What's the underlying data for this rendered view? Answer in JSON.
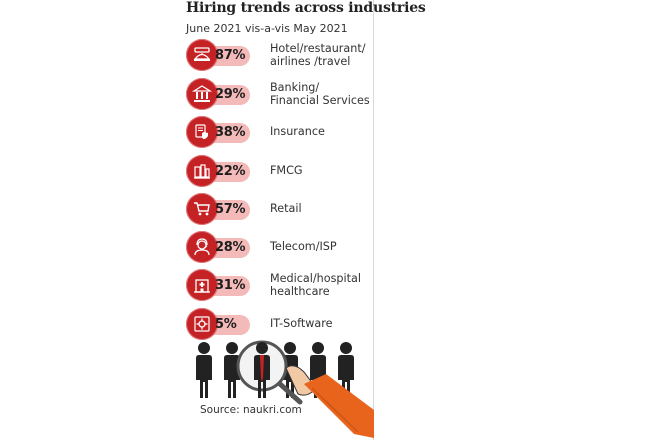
{
  "header": {
    "title": "Hiring trends across industries",
    "subtitle": "June 2021 vis-a-vis May 2021"
  },
  "chart_data": {
    "type": "table",
    "title": "Hiring trends across industries",
    "subtitle": "June 2021 vis-a-vis May 2021",
    "categories": [
      "Hotel/restaurant/ airlines /travel",
      "Banking/ Financial Services",
      "Insurance",
      "FMCG",
      "Retail",
      "Telecom/ISP",
      "Medical/hospital healthcare",
      "IT-Software"
    ],
    "values": [
      87,
      29,
      38,
      22,
      57,
      28,
      31,
      5
    ],
    "unit": "%"
  },
  "rows": [
    {
      "pct": "87%",
      "line1": "Hotel/restaurant/",
      "line2": "airlines /travel",
      "icon": "hotel-bell-icon"
    },
    {
      "pct": "29%",
      "line1": "Banking/",
      "line2": "Financial Services",
      "icon": "bank-icon"
    },
    {
      "pct": "38%",
      "line1": "Insurance",
      "line2": "",
      "icon": "insurance-shield-icon"
    },
    {
      "pct": "22%",
      "line1": "FMCG",
      "line2": "",
      "icon": "fmcg-products-icon"
    },
    {
      "pct": "57%",
      "line1": "Retail",
      "line2": "",
      "icon": "shopping-cart-icon"
    },
    {
      "pct": "28%",
      "line1": "Telecom/ISP",
      "line2": "",
      "icon": "headset-operator-icon"
    },
    {
      "pct": "31%",
      "line1": "Medical/hospital",
      "line2": "healthcare",
      "icon": "hospital-icon"
    },
    {
      "pct": "5%",
      "line1": "IT-Software",
      "line2": "",
      "icon": "software-gear-icon"
    }
  ],
  "footer": {
    "source": "Source: naukri.com"
  },
  "colors": {
    "accent": "#c52226",
    "pill": "#f4b9b9",
    "hand_sleeve": "#e8641c"
  }
}
